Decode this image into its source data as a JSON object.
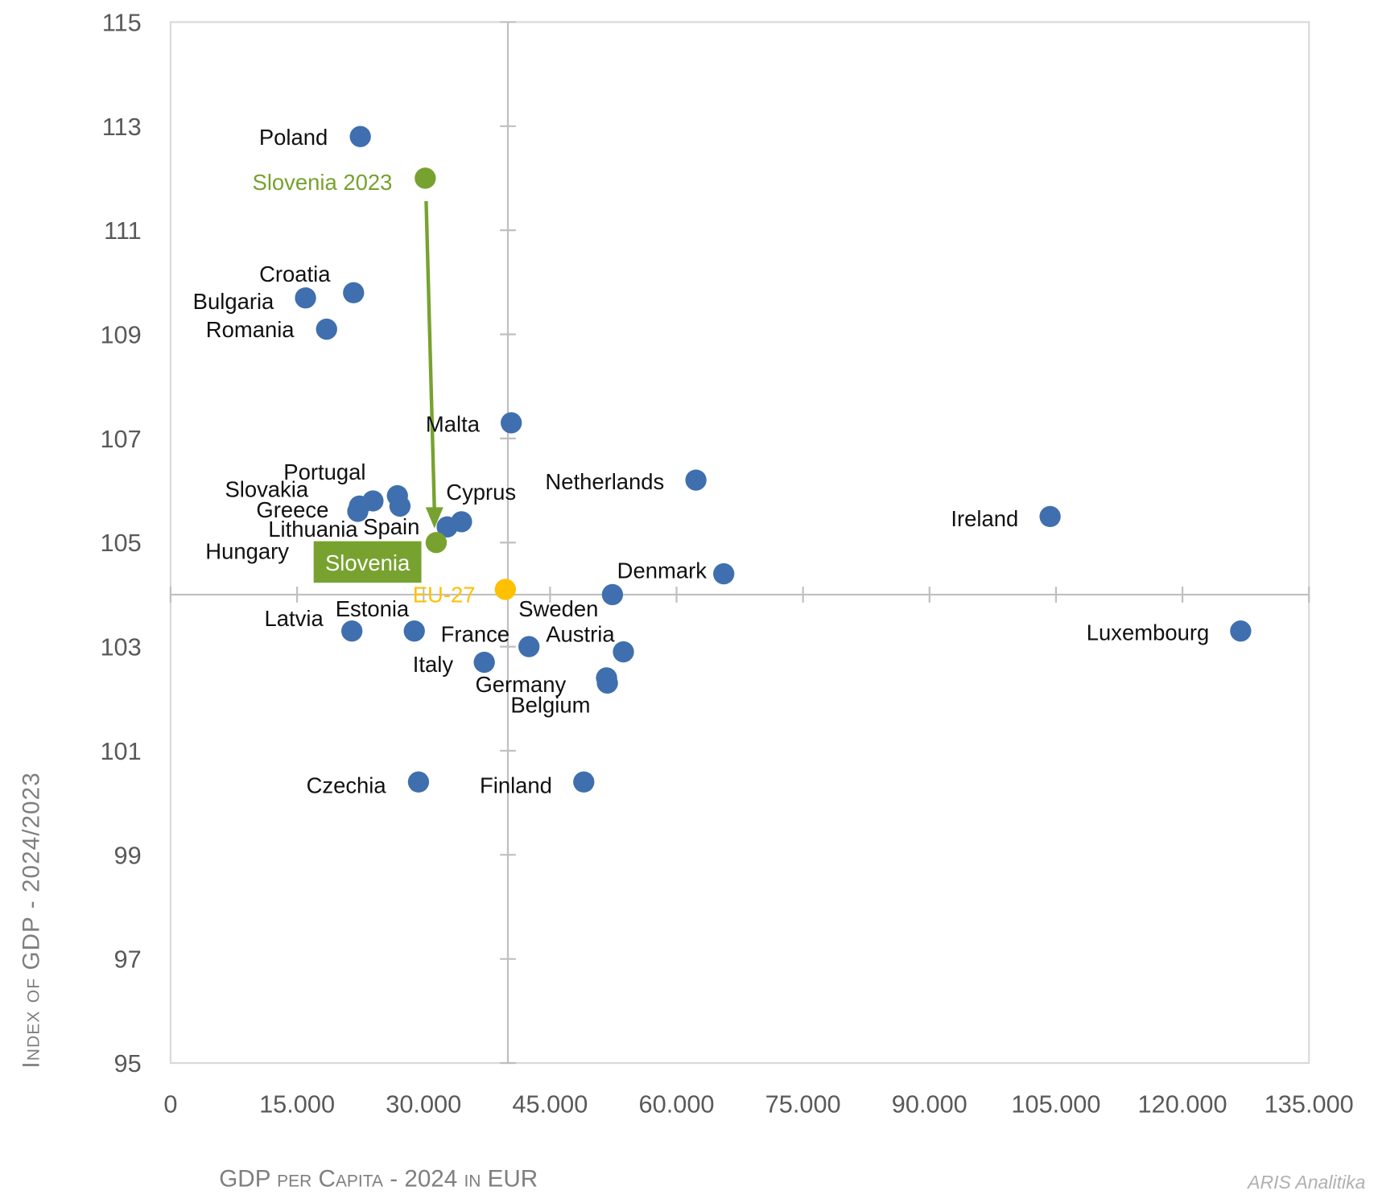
{
  "chart_data": {
    "type": "scatter",
    "title": "",
    "xlabel": "GDP per Capita - 2024 in EUR",
    "ylabel": "Index of GDP - 2024/2023",
    "xlim": [
      0,
      135000
    ],
    "ylim": [
      95,
      115
    ],
    "x_ticks": [
      "0",
      "15.000",
      "30.000",
      "45.000",
      "60.000",
      "75.000",
      "90.000",
      "105.000",
      "120.000",
      "135.000"
    ],
    "y_ticks": [
      "95",
      "97",
      "99",
      "101",
      "103",
      "105",
      "107",
      "109",
      "111",
      "113",
      "115"
    ],
    "axis_cross": {
      "x": 40000,
      "y": 104
    },
    "grid": false,
    "colors": {
      "country": "#3F6FAE",
      "slovenia": "#77A22F",
      "eu": "#FFC000"
    },
    "points": [
      {
        "name": "Poland",
        "x": 22500,
        "y": 112.8,
        "kind": "country"
      },
      {
        "name": "Slovenia 2023",
        "x": 30200,
        "y": 112.0,
        "kind": "slovenia"
      },
      {
        "name": "Croatia",
        "x": 21700,
        "y": 109.8,
        "kind": "country"
      },
      {
        "name": "Bulgaria",
        "x": 16000,
        "y": 109.7,
        "kind": "country"
      },
      {
        "name": "Romania",
        "x": 18500,
        "y": 109.1,
        "kind": "country"
      },
      {
        "name": "Malta",
        "x": 40400,
        "y": 107.3,
        "kind": "country"
      },
      {
        "name": "Netherlands",
        "x": 62300,
        "y": 106.2,
        "kind": "country"
      },
      {
        "name": "Ireland",
        "x": 104300,
        "y": 105.5,
        "kind": "country"
      },
      {
        "name": "Hungary",
        "x": 22200,
        "y": 105.6,
        "kind": "country"
      },
      {
        "name": "Greece",
        "x": 22400,
        "y": 105.7,
        "kind": "country"
      },
      {
        "name": "Slovakia",
        "x": 24000,
        "y": 105.8,
        "kind": "country"
      },
      {
        "name": "Lithuania",
        "x": 26900,
        "y": 105.9,
        "kind": "country"
      },
      {
        "name": "Portugal",
        "x": 27200,
        "y": 105.7,
        "kind": "country"
      },
      {
        "name": "Spain",
        "x": 32800,
        "y": 105.3,
        "kind": "country"
      },
      {
        "name": "Cyprus",
        "x": 34500,
        "y": 105.4,
        "kind": "country"
      },
      {
        "name": "Slovenia",
        "x": 31500,
        "y": 105.0,
        "kind": "slovenia"
      },
      {
        "name": "EU-27",
        "x": 39700,
        "y": 104.1,
        "kind": "eu"
      },
      {
        "name": "Denmark",
        "x": 65600,
        "y": 104.4,
        "kind": "country"
      },
      {
        "name": "Sweden",
        "x": 52400,
        "y": 104.0,
        "kind": "country"
      },
      {
        "name": "Luxembourg",
        "x": 126900,
        "y": 103.3,
        "kind": "country"
      },
      {
        "name": "Latvia",
        "x": 21500,
        "y": 103.3,
        "kind": "country"
      },
      {
        "name": "Estonia",
        "x": 28900,
        "y": 103.3,
        "kind": "country"
      },
      {
        "name": "France",
        "x": 42500,
        "y": 103.0,
        "kind": "country"
      },
      {
        "name": "Austria",
        "x": 53700,
        "y": 102.9,
        "kind": "country"
      },
      {
        "name": "Italy",
        "x": 37200,
        "y": 102.7,
        "kind": "country"
      },
      {
        "name": "Germany",
        "x": 51700,
        "y": 102.4,
        "kind": "country"
      },
      {
        "name": "Belgium",
        "x": 51800,
        "y": 102.3,
        "kind": "country"
      },
      {
        "name": "Czechia",
        "x": 29400,
        "y": 100.4,
        "kind": "country"
      },
      {
        "name": "Finland",
        "x": 49000,
        "y": 100.4,
        "kind": "country"
      }
    ],
    "annotations": [
      {
        "type": "arrow",
        "from": "Slovenia 2023",
        "to": "Slovenia"
      }
    ]
  },
  "credit": "ARIS Analitika"
}
